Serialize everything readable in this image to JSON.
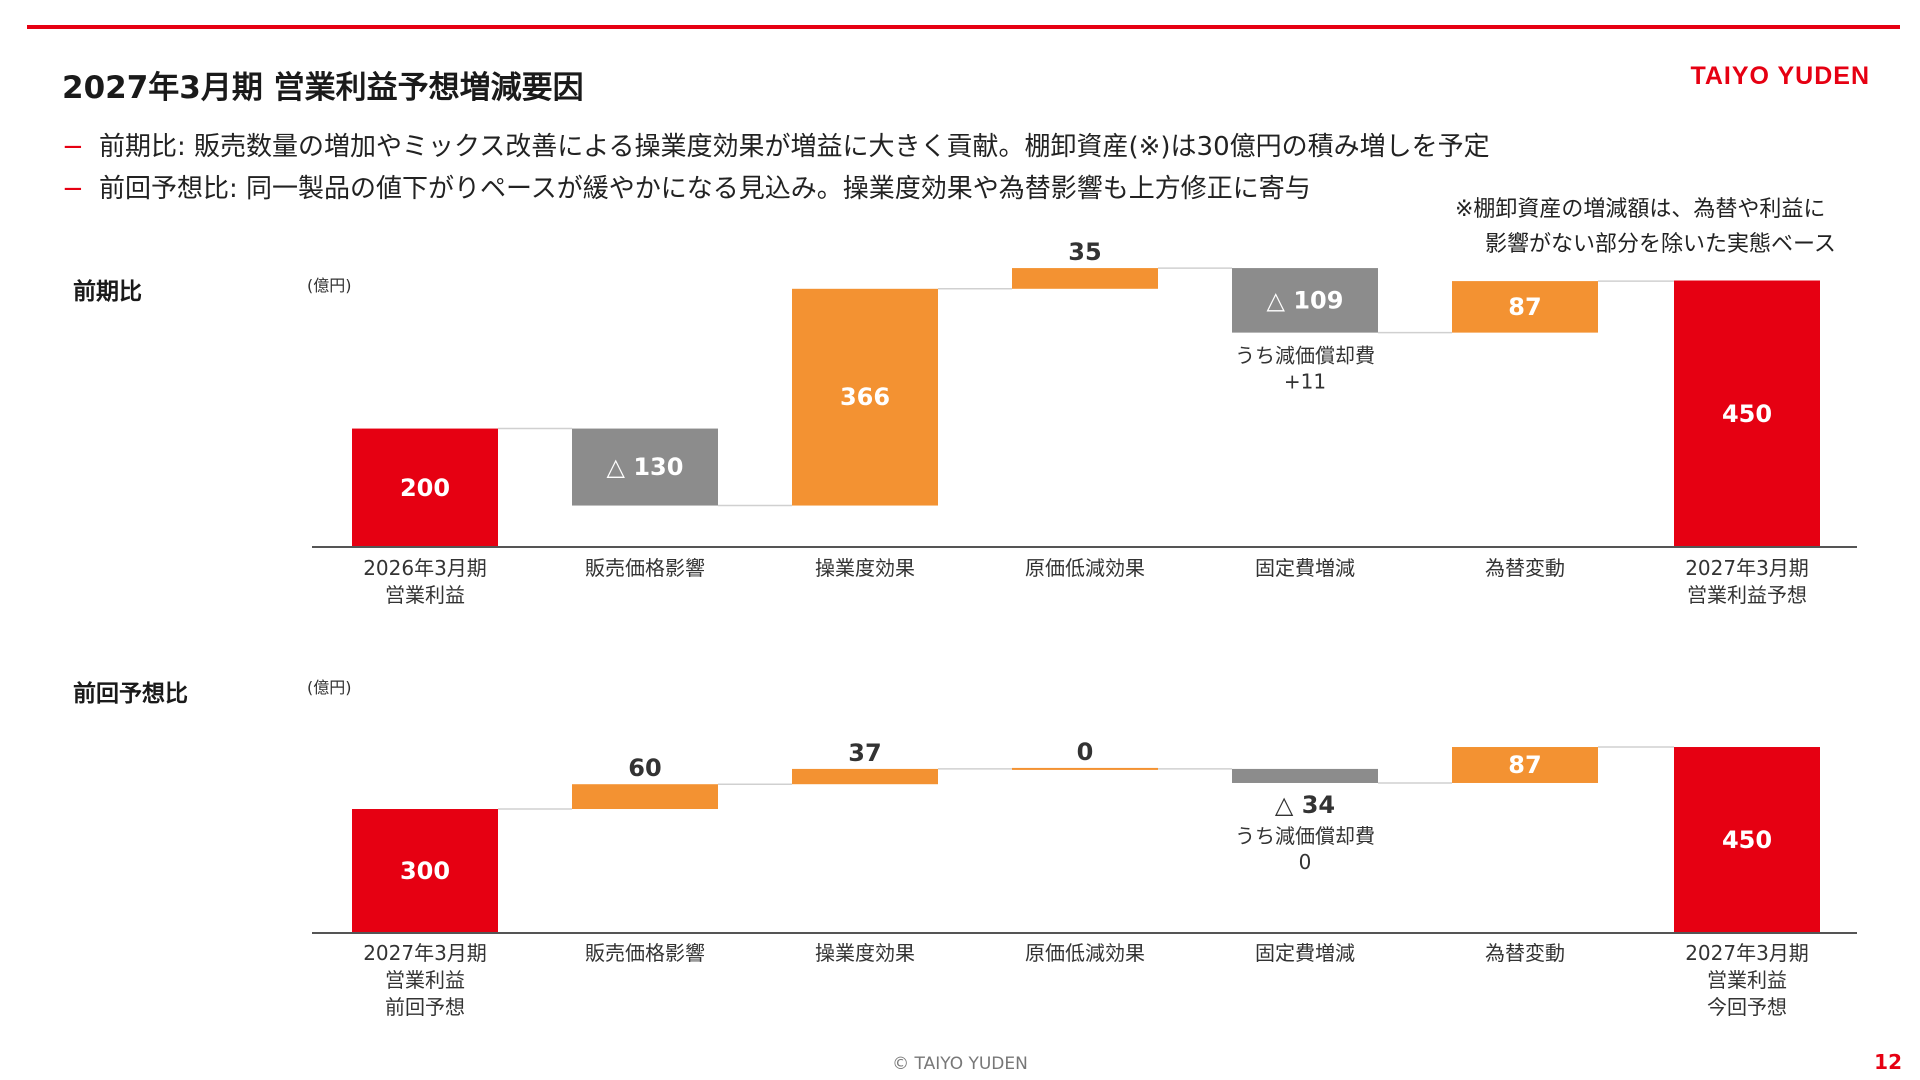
{
  "header": {
    "title": "2027年3月期 営業利益予想増減要因",
    "logo": "TAIYO YUDEN"
  },
  "bullets": [
    "前期比: 販売数量の増加やミックス改善による操業度効果が増益に大きく貢献。棚卸資産(※)は30億円の積み増しを予定",
    "前回予想比: 同一製品の値下がりペースが緩やかになる見込み。操業度効果や為替影響も上方修正に寄与"
  ],
  "bullet_marker": "−",
  "note": {
    "line1": "※棚卸資産の増減額は、為替や利益に",
    "line2": "影響がない部分を除いた実態ベース"
  },
  "colors": {
    "total": "#e60012",
    "increase": "#f39232",
    "decrease": "#8c8c8c",
    "accent": "#e60012"
  },
  "chart_data": [
    {
      "type": "waterfall",
      "section_label": "前期比",
      "unit": "(億円)",
      "ylim": [
        0,
        480
      ],
      "bars": [
        {
          "category": "2026年3月期\n営業利益",
          "kind": "total",
          "value": 200,
          "label": "200"
        },
        {
          "category": "販売価格影響",
          "kind": "decrease",
          "value": -130,
          "label": "△ 130"
        },
        {
          "category": "操業度効果",
          "kind": "increase",
          "value": 366,
          "label": "366"
        },
        {
          "category": "原価低減効果",
          "kind": "increase",
          "value": 35,
          "label": "35"
        },
        {
          "category": "固定費増減",
          "kind": "decrease",
          "value": -109,
          "label": "△ 109",
          "annotation": "うち減価償却費\n+11"
        },
        {
          "category": "為替変動",
          "kind": "increase",
          "value": 87,
          "label": "87"
        },
        {
          "category": "2027年3月期\n営業利益予想",
          "kind": "total",
          "value": 450,
          "label": "450"
        }
      ]
    },
    {
      "type": "waterfall",
      "section_label": "前回予想比",
      "unit": "(億円)",
      "ylim": [
        0,
        480
      ],
      "bars": [
        {
          "category": "2027年3月期\n営業利益\n前回予想",
          "kind": "total",
          "value": 300,
          "label": "300"
        },
        {
          "category": "販売価格影響",
          "kind": "increase",
          "value": 60,
          "label": "60"
        },
        {
          "category": "操業度効果",
          "kind": "increase",
          "value": 37,
          "label": "37"
        },
        {
          "category": "原価低減効果",
          "kind": "increase",
          "value": 0,
          "label": "0"
        },
        {
          "category": "固定費増減",
          "kind": "decrease",
          "value": -34,
          "label": "△ 34",
          "annotation": "うち減価償却費\n0"
        },
        {
          "category": "為替変動",
          "kind": "increase",
          "value": 87,
          "label": "87"
        },
        {
          "category": "2027年3月期\n営業利益\n今回予想",
          "kind": "total",
          "value": 450,
          "label": "450"
        }
      ]
    }
  ],
  "footer": {
    "copyright": "© TAIYO YUDEN",
    "page_number": "12"
  }
}
